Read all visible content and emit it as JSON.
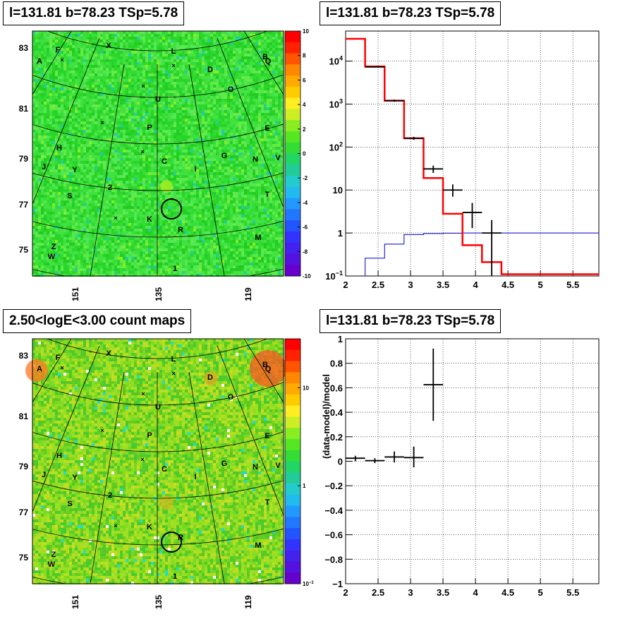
{
  "panels": {
    "tl": {
      "title": "l=131.81 b=78.23 TSp=5.78"
    },
    "tr": {
      "title": "l=131.81 b=78.23 TSp=5.78"
    },
    "bl": {
      "title": "2.50<logE<3.00 count maps"
    },
    "br": {
      "title": "l=131.81 b=78.23 TSp=5.78"
    }
  },
  "colors": {
    "map_green": "#33dd33",
    "data_black": "#000000",
    "model_red": "#ff0000",
    "bkg_blue": "#0000cc"
  },
  "chart_data": [
    {
      "type": "heatmap",
      "name": "residual significance map",
      "xticks": [
        "151",
        "135",
        "119"
      ],
      "yticks": [
        "83",
        "81",
        "79",
        "77",
        "75"
      ],
      "colorbar_ticks": [
        "10",
        "8",
        "6",
        "4",
        "2",
        "0",
        "-2",
        "-4",
        "-6",
        "-8",
        "-10"
      ],
      "zlim": [
        -10,
        10
      ],
      "source_labels": [
        "A",
        "F",
        "X",
        "L",
        "B",
        "Q",
        "D",
        "O",
        "U",
        "E",
        "P",
        "H",
        "J",
        "Y",
        "C",
        "I",
        "G",
        "N",
        "V",
        "2",
        "S",
        "T",
        "K",
        "R",
        "M",
        "Z",
        "W",
        "1"
      ],
      "roi_circle_center": [
        131.81,
        78.23
      ]
    },
    {
      "type": "line",
      "name": "counts spectrum",
      "ylog": true,
      "xlim": [
        2,
        5.9
      ],
      "ylim": [
        0.1,
        50000
      ],
      "xticks": [
        "2",
        "2.5",
        "3",
        "3.5",
        "4",
        "4.5",
        "5",
        "5.5"
      ],
      "yticks": [
        {
          "mant": "10",
          "exp": "4",
          "value": 10000
        },
        {
          "mant": "10",
          "exp": "3",
          "value": 1000
        },
        {
          "mant": "10",
          "exp": "2",
          "value": 100
        },
        {
          "mant": "10",
          "exp": "",
          "value": 10
        },
        {
          "mant": "1",
          "exp": "",
          "value": 1
        },
        {
          "mant": "10",
          "exp": "−1",
          "value": 0.1
        }
      ],
      "model_steps": [
        {
          "x0": 2.0,
          "x1": 2.3,
          "y": 33000
        },
        {
          "x0": 2.3,
          "x1": 2.6,
          "y": 7500
        },
        {
          "x0": 2.6,
          "x1": 2.9,
          "y": 1200
        },
        {
          "x0": 2.9,
          "x1": 3.2,
          "y": 160
        },
        {
          "x0": 3.2,
          "x1": 3.5,
          "y": 19
        },
        {
          "x0": 3.5,
          "x1": 3.8,
          "y": 2.8
        },
        {
          "x0": 3.8,
          "x1": 4.1,
          "y": 0.52
        },
        {
          "x0": 4.1,
          "x1": 4.4,
          "y": 0.21
        },
        {
          "x0": 4.4,
          "x1": 5.9,
          "y": 0.11
        }
      ],
      "background_steps": [
        {
          "x0": 2.3,
          "x1": 2.6,
          "y": 0.26
        },
        {
          "x0": 2.6,
          "x1": 2.9,
          "y": 0.55
        },
        {
          "x0": 2.9,
          "x1": 3.2,
          "y": 0.92
        },
        {
          "x0": 3.2,
          "x1": 3.5,
          "y": 0.97
        },
        {
          "x0": 3.5,
          "x1": 3.8,
          "y": 0.99
        },
        {
          "x0": 3.8,
          "x1": 5.9,
          "y": 1.0
        }
      ],
      "data_points": [
        {
          "x": 2.45,
          "y": 7300,
          "xerr": 0.15,
          "ylo": 7100,
          "yhi": 7500
        },
        {
          "x": 2.75,
          "y": 1200,
          "xerr": 0.15,
          "ylo": 1130,
          "yhi": 1270
        },
        {
          "x": 3.05,
          "y": 160,
          "xerr": 0.15,
          "ylo": 147,
          "yhi": 173
        },
        {
          "x": 3.35,
          "y": 31,
          "xerr": 0.15,
          "ylo": 25,
          "yhi": 37
        },
        {
          "x": 3.65,
          "y": 10,
          "xerr": 0.15,
          "ylo": 7,
          "yhi": 13.5
        },
        {
          "x": 3.95,
          "y": 3,
          "xerr": 0.15,
          "ylo": 1.3,
          "yhi": 5
        },
        {
          "x": 4.25,
          "y": 1,
          "xerr": 0.15,
          "ylo": 0.1,
          "yhi": 2
        }
      ]
    },
    {
      "type": "heatmap",
      "name": "count map",
      "xticks": [
        "151",
        "135",
        "119"
      ],
      "yticks": [
        "83",
        "81",
        "79",
        "77",
        "75"
      ],
      "colorbar_ticks": [
        {
          "mant": "10",
          "exp": "",
          "value": 10
        },
        {
          "mant": "1",
          "exp": "",
          "value": 1
        },
        {
          "mant": "10",
          "exp": "−1",
          "value": 0.1
        }
      ],
      "source_labels": [
        "A",
        "F",
        "X",
        "L",
        "B",
        "Q",
        "D",
        "O",
        "U",
        "E",
        "P",
        "H",
        "J",
        "Y",
        "C",
        "I",
        "G",
        "N",
        "V",
        "2",
        "S",
        "T",
        "K",
        "R",
        "M",
        "Z",
        "W",
        "1"
      ],
      "roi_circle_center": [
        131.81,
        78.23
      ]
    },
    {
      "type": "scatter",
      "name": "residuals",
      "ylabel": "(data-model)/model",
      "xlim": [
        2,
        5.9
      ],
      "ylim": [
        -1,
        1
      ],
      "xticks": [
        "2",
        "2.5",
        "3",
        "3.5",
        "4",
        "4.5",
        "5",
        "5.5"
      ],
      "yticks": [
        "1",
        "0.8",
        "0.6",
        "0.4",
        "0.2",
        "0",
        "−0.2",
        "−0.4",
        "−0.6",
        "−0.8",
        "−1"
      ],
      "points": [
        {
          "x": 2.15,
          "y": 0.025,
          "xerr": 0.15,
          "ylo": 0.0,
          "yhi": 0.045
        },
        {
          "x": 2.45,
          "y": 0.005,
          "xerr": 0.15,
          "ylo": -0.015,
          "yhi": 0.025
        },
        {
          "x": 2.75,
          "y": 0.035,
          "xerr": 0.15,
          "ylo": -0.01,
          "yhi": 0.08
        },
        {
          "x": 3.05,
          "y": 0.03,
          "xerr": 0.15,
          "ylo": -0.05,
          "yhi": 0.12
        },
        {
          "x": 3.35,
          "y": 0.625,
          "xerr": 0.15,
          "ylo": 0.33,
          "yhi": 0.92
        }
      ]
    }
  ]
}
